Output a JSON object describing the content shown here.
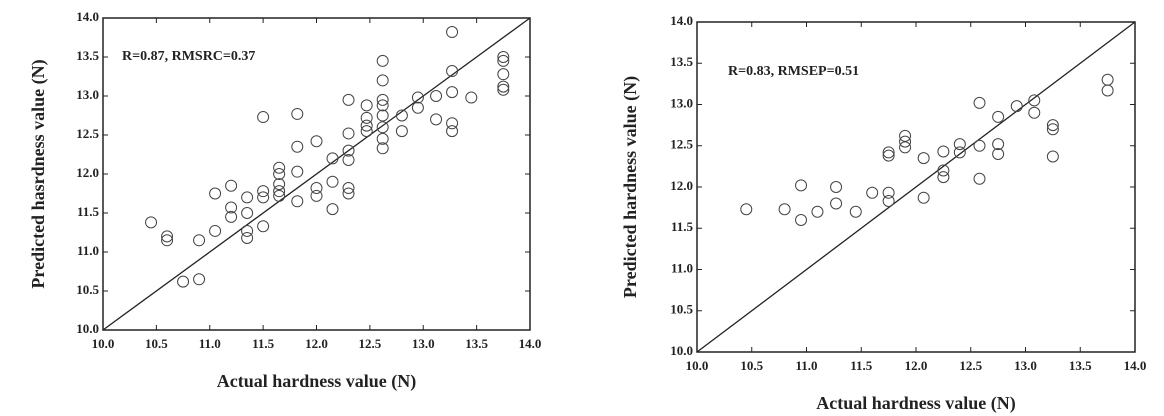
{
  "chart_data": [
    {
      "type": "scatter",
      "annotation": "R=0.87, RMSRC=0.37",
      "xlabel": "Actual  hardness value (N)",
      "ylabel": "Predicted hasrdness value (N)",
      "xlim": [
        10,
        14
      ],
      "ylim": [
        10,
        14
      ],
      "xticks": [
        {
          "value": 10,
          "label": "10.0"
        },
        {
          "value": 10.5,
          "label": "10.5"
        },
        {
          "value": 11,
          "label": "11.0"
        },
        {
          "value": 11.5,
          "label": "11.5"
        },
        {
          "value": 12,
          "label": "12.0"
        },
        {
          "value": 12.5,
          "label": "12.5"
        },
        {
          "value": 13,
          "label": "13.0"
        },
        {
          "value": 13.5,
          "label": "13.5"
        },
        {
          "value": 14,
          "label": "14.0"
        }
      ],
      "yticks": [
        {
          "value": 10,
          "label": "10.0"
        },
        {
          "value": 10.5,
          "label": "10.5"
        },
        {
          "value": 11,
          "label": "11.0"
        },
        {
          "value": 11.5,
          "label": "11.5"
        },
        {
          "value": 12,
          "label": "12.0"
        },
        {
          "value": 12.5,
          "label": "12.5"
        },
        {
          "value": 13,
          "label": "13.0"
        },
        {
          "value": 13.5,
          "label": "13.5"
        },
        {
          "value": 14,
          "label": "14.0"
        }
      ],
      "color": "#444444",
      "x": [
        10.45,
        10.6,
        10.6,
        10.75,
        10.9,
        10.9,
        11.05,
        11.05,
        11.2,
        11.2,
        11.2,
        11.35,
        11.35,
        11.35,
        11.35,
        11.5,
        11.5,
        11.5,
        11.5,
        11.65,
        11.65,
        11.65,
        11.65,
        11.65,
        11.82,
        11.82,
        11.82,
        11.82,
        12.0,
        12.0,
        12.0,
        12.15,
        12.15,
        12.15,
        12.3,
        12.3,
        12.3,
        12.3,
        12.3,
        12.3,
        12.47,
        12.47,
        12.47,
        12.47,
        12.62,
        12.62,
        12.62,
        12.62,
        12.62,
        12.62,
        12.62,
        12.62,
        12.8,
        12.8,
        12.95,
        12.95,
        13.12,
        13.12,
        13.27,
        13.27,
        13.27,
        13.27,
        13.27,
        13.45,
        13.75,
        13.75,
        13.75,
        13.75,
        13.75
      ],
      "values": [
        11.38,
        11.2,
        11.15,
        10.62,
        11.15,
        10.65,
        11.27,
        11.75,
        11.85,
        11.57,
        11.45,
        11.7,
        11.5,
        11.27,
        11.18,
        12.73,
        11.78,
        11.7,
        11.33,
        12.08,
        12.0,
        11.87,
        11.78,
        11.72,
        12.77,
        12.35,
        12.03,
        11.65,
        12.42,
        11.82,
        11.72,
        12.2,
        11.9,
        11.55,
        12.95,
        12.52,
        12.3,
        12.18,
        11.82,
        11.75,
        12.88,
        12.72,
        12.62,
        12.55,
        13.45,
        13.2,
        12.95,
        12.88,
        12.75,
        12.6,
        12.45,
        12.33,
        12.75,
        12.55,
        12.98,
        12.85,
        13.0,
        12.7,
        13.82,
        13.32,
        13.05,
        12.65,
        12.55,
        12.98,
        13.5,
        13.45,
        13.28,
        13.12,
        13.08
      ]
    },
    {
      "type": "scatter",
      "annotation": "R=0.83, RMSEP=0.51",
      "xlabel": "Actual  hardness value (N)",
      "ylabel": "Predicted hardness value (N)",
      "xlim": [
        10,
        14
      ],
      "ylim": [
        10,
        14
      ],
      "xticks": [
        {
          "value": 10,
          "label": "10.0"
        },
        {
          "value": 10.5,
          "label": "10.5"
        },
        {
          "value": 11,
          "label": "11.0"
        },
        {
          "value": 11.5,
          "label": "11.5"
        },
        {
          "value": 12,
          "label": "12.0"
        },
        {
          "value": 12.5,
          "label": "12.5"
        },
        {
          "value": 13,
          "label": "13.0"
        },
        {
          "value": 13.5,
          "label": "13.5"
        },
        {
          "value": 14,
          "label": "14.0"
        }
      ],
      "yticks": [
        {
          "value": 10,
          "label": "10.0"
        },
        {
          "value": 10.5,
          "label": "10.5"
        },
        {
          "value": 11,
          "label": "11.0"
        },
        {
          "value": 11.5,
          "label": "11.5"
        },
        {
          "value": 12,
          "label": "12.0"
        },
        {
          "value": 12.5,
          "label": "12.5"
        },
        {
          "value": 13,
          "label": "13.0"
        },
        {
          "value": 13.5,
          "label": "13.5"
        },
        {
          "value": 14,
          "label": "14.0"
        }
      ],
      "color": "#444444",
      "x": [
        10.45,
        10.8,
        10.95,
        10.95,
        11.1,
        11.27,
        11.27,
        11.45,
        11.6,
        11.75,
        11.75,
        11.75,
        11.75,
        11.9,
        11.9,
        11.9,
        12.07,
        12.07,
        12.25,
        12.25,
        12.25,
        12.4,
        12.4,
        12.58,
        12.58,
        12.58,
        12.75,
        12.75,
        12.75,
        12.92,
        13.08,
        13.08,
        13.25,
        13.25,
        13.25,
        13.75,
        13.75
      ],
      "values": [
        11.73,
        11.73,
        12.02,
        11.6,
        11.7,
        12.0,
        11.8,
        11.7,
        11.93,
        12.42,
        12.38,
        11.93,
        11.83,
        12.62,
        12.55,
        12.48,
        12.35,
        11.87,
        12.43,
        12.2,
        12.12,
        12.52,
        12.42,
        13.02,
        12.5,
        12.1,
        12.85,
        12.52,
        12.4,
        12.98,
        13.05,
        12.9,
        12.75,
        12.7,
        12.37,
        13.3,
        13.17
      ]
    }
  ]
}
